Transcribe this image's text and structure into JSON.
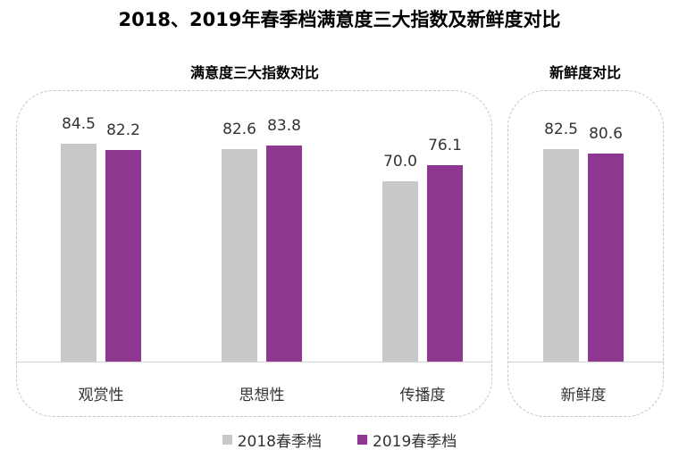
{
  "chart_data": {
    "type": "bar",
    "title": "2018、2019年春季档满意度三大指数及新鲜度对比",
    "series": [
      {
        "name": "2018春季档",
        "color": "#c8c8c8"
      },
      {
        "name": "2019春季档",
        "color": "#8e3791"
      }
    ],
    "panels": [
      {
        "title": "满意度三大指数对比",
        "categories": [
          "观赏性",
          "思想性",
          "传播度"
        ],
        "values": [
          [
            84.5,
            82.2
          ],
          [
            82.6,
            83.8
          ],
          [
            70.0,
            76.1
          ]
        ],
        "labels": [
          [
            "84.5",
            "82.2"
          ],
          [
            "82.6",
            "83.8"
          ],
          [
            "70.0",
            "76.1"
          ]
        ]
      },
      {
        "title": "新鲜度对比",
        "categories": [
          "新鲜度"
        ],
        "values": [
          [
            82.5,
            80.6
          ]
        ],
        "labels": [
          [
            "82.5",
            "80.6"
          ]
        ]
      }
    ],
    "y_axis_visible": false,
    "ylim": [
      0,
      100
    ],
    "legend_position": "bottom"
  }
}
